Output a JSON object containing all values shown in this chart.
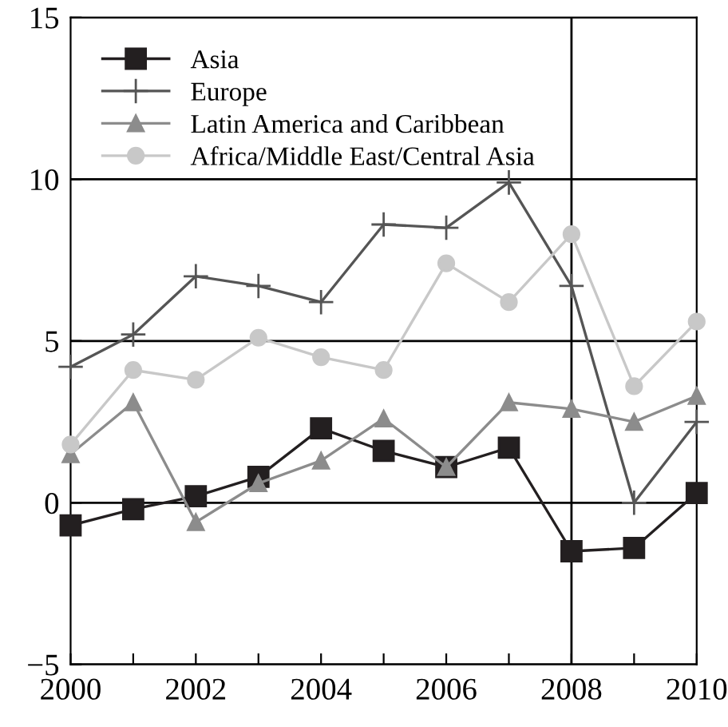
{
  "chart_data": {
    "type": "line",
    "x": [
      2000,
      2001,
      2002,
      2003,
      2004,
      2005,
      2006,
      2007,
      2008,
      2009,
      2010
    ],
    "series": [
      {
        "name": "Asia",
        "color": "#231f20",
        "marker": "square",
        "values": [
          -0.7,
          -0.2,
          0.2,
          0.8,
          2.3,
          1.6,
          1.1,
          1.7,
          -1.5,
          -1.4,
          0.3
        ]
      },
      {
        "name": "Europe",
        "color": "#555555",
        "marker": "cross",
        "values": [
          4.2,
          5.2,
          7.0,
          6.7,
          6.2,
          8.6,
          8.5,
          9.9,
          6.7,
          0.0,
          2.5
        ]
      },
      {
        "name": "Latin America and Caribbean",
        "color": "#8c8c8c",
        "marker": "triangle",
        "values": [
          1.5,
          3.1,
          -0.6,
          0.6,
          1.3,
          2.6,
          1.1,
          3.1,
          2.9,
          2.5,
          3.3
        ]
      },
      {
        "name": "Africa/Middle East/Central Asia",
        "color": "#c8c8c8",
        "marker": "circle",
        "values": [
          1.8,
          4.1,
          3.8,
          5.1,
          4.5,
          4.1,
          7.4,
          6.2,
          8.3,
          3.6,
          5.6
        ]
      }
    ],
    "xlim": [
      2000,
      2010
    ],
    "xticks": [
      2000,
      {
        "value": 2001,
        "label": null
      },
      2002,
      {
        "value": 2003,
        "label": null
      },
      2004,
      {
        "value": 2005,
        "label": null
      },
      2006,
      {
        "value": 2007,
        "label": null
      },
      2008,
      {
        "value": 2009,
        "label": null
      },
      2010
    ],
    "ylim": [
      -5,
      15
    ],
    "yticks": [
      -5,
      0,
      5,
      10,
      15
    ],
    "ref_lines": [
      {
        "axis": "x",
        "value": 2008,
        "color": "#000000"
      }
    ],
    "grid": "y",
    "legend": "top left",
    "line_style": "solid"
  }
}
